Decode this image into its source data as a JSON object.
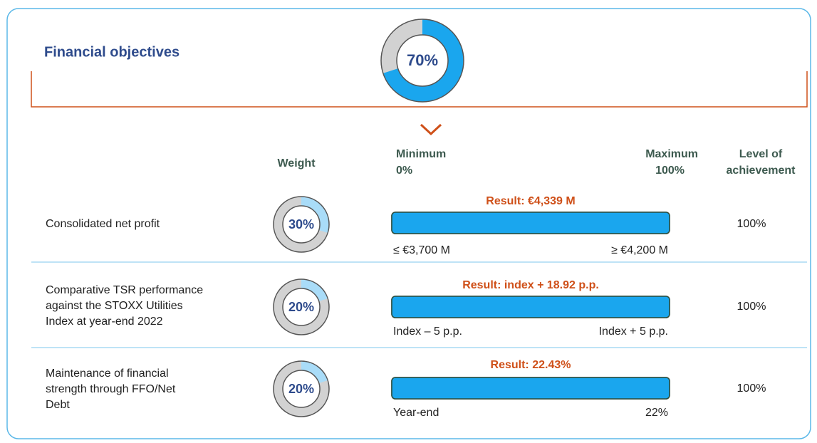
{
  "title": "Financial objectives",
  "total_weight": {
    "value": 70,
    "label": "70%"
  },
  "columns": {
    "weight": "Weight",
    "minimum": "Minimum",
    "minimum_pct": "0%",
    "maximum": "Maximum",
    "maximum_pct": "100%",
    "achievement": [
      "Level of",
      "achievement"
    ]
  },
  "rows": [
    {
      "name": [
        "Consolidated net profit"
      ],
      "weight": {
        "value": 30,
        "label": "30%"
      },
      "result": "Result: €4,339 M",
      "min_label": "≤ €3,700 M",
      "max_label": "≥ €4,200 M",
      "achievement": {
        "value": 100,
        "label": "100%"
      }
    },
    {
      "name": [
        "Comparative TSR performance",
        "against the STOXX Utilities",
        "Index at year-end 2022"
      ],
      "weight": {
        "value": 20,
        "label": "20%"
      },
      "result": "Result: index + 18.92 p.p.",
      "min_label": "Index – 5 p.p.",
      "max_label": "Index + 5 p.p.",
      "achievement": {
        "value": 100,
        "label": "100%"
      }
    },
    {
      "name": [
        "Maintenance of financial",
        "strength through FFO/Net",
        "Debt"
      ],
      "weight": {
        "value": 20,
        "label": "20%"
      },
      "result": "Result: 22.43%",
      "min_label": "Year-end",
      "max_label": "22%",
      "achievement": {
        "value": 100,
        "label": "100%"
      }
    }
  ]
}
